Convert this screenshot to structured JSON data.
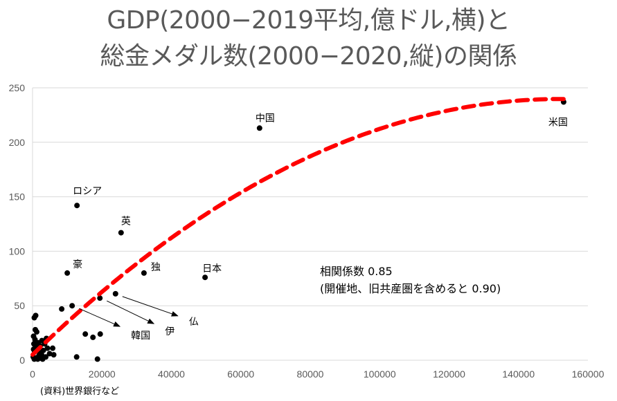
{
  "title": {
    "line1": "GDP(2000−2019平均,億ドル,横)と",
    "line2": "総金メダル数(2000−2020,縦)の関係"
  },
  "annotation": {
    "line1": "相関係数 0.85",
    "line2": "(開催地、旧共産圏を含めると 0.90)"
  },
  "source": "(資料)世界銀行など",
  "colors": {
    "points": "#000000",
    "trendline": "#ff0000",
    "grid": "#d9d9d9",
    "text": "#595959"
  },
  "chart_data": {
    "type": "scatter",
    "title": "GDP(2000−2019平均,億ドル,横)と総金メダル数(2000−2020,縦)の関係",
    "xlabel": "",
    "ylabel": "",
    "xlim": [
      0,
      160000
    ],
    "ylim": [
      0,
      250
    ],
    "xticks": [
      0,
      20000,
      40000,
      60000,
      80000,
      100000,
      120000,
      140000,
      160000
    ],
    "yticks": [
      0,
      50,
      100,
      150,
      200,
      250
    ],
    "grid": "horizontal",
    "trendline": {
      "type": "polynomial-2",
      "style": "dashed",
      "color": "#ff0000",
      "coefficients": [
        5,
        0.00309,
        -1.017e-08
      ],
      "x_range": [
        0,
        153000
      ]
    },
    "labeled_points": [
      {
        "label": "米国",
        "x": 153000,
        "y": 237
      },
      {
        "label": "中国",
        "x": 65400,
        "y": 213
      },
      {
        "label": "ロシア",
        "x": 12800,
        "y": 142
      },
      {
        "label": "英",
        "x": 25500,
        "y": 117
      },
      {
        "label": "豪",
        "x": 10000,
        "y": 80
      },
      {
        "label": "独",
        "x": 32100,
        "y": 80
      },
      {
        "label": "日本",
        "x": 49700,
        "y": 76
      },
      {
        "label": "仏",
        "x": 23900,
        "y": 61,
        "arrow": true
      },
      {
        "label": "伊",
        "x": 19400,
        "y": 57,
        "arrow": true
      },
      {
        "label": "韓国",
        "x": 11400,
        "y": 50,
        "arrow": true
      }
    ],
    "points": [
      [
        8400,
        47
      ],
      [
        15200,
        24
      ],
      [
        17400,
        21
      ],
      [
        19500,
        24
      ],
      [
        12700,
        3
      ],
      [
        18700,
        1
      ],
      [
        500,
        39
      ],
      [
        900,
        41
      ],
      [
        800,
        28
      ],
      [
        1200,
        26
      ],
      [
        300,
        22
      ],
      [
        700,
        19
      ],
      [
        1600,
        16
      ],
      [
        2200,
        13
      ],
      [
        3500,
        15
      ],
      [
        4300,
        11
      ],
      [
        5800,
        11
      ],
      [
        4900,
        6
      ],
      [
        6100,
        5
      ],
      [
        300,
        10
      ],
      [
        600,
        8
      ],
      [
        900,
        12
      ],
      [
        1400,
        9
      ],
      [
        2000,
        7
      ],
      [
        2600,
        5
      ],
      [
        3100,
        9
      ],
      [
        200,
        3
      ],
      [
        500,
        1
      ],
      [
        900,
        2
      ],
      [
        1500,
        1
      ],
      [
        2300,
        2
      ],
      [
        2900,
        1
      ],
      [
        3800,
        3
      ],
      [
        1800,
        4
      ],
      [
        400,
        15
      ],
      [
        1000,
        14
      ],
      [
        2700,
        18
      ],
      [
        4000,
        20
      ]
    ]
  }
}
